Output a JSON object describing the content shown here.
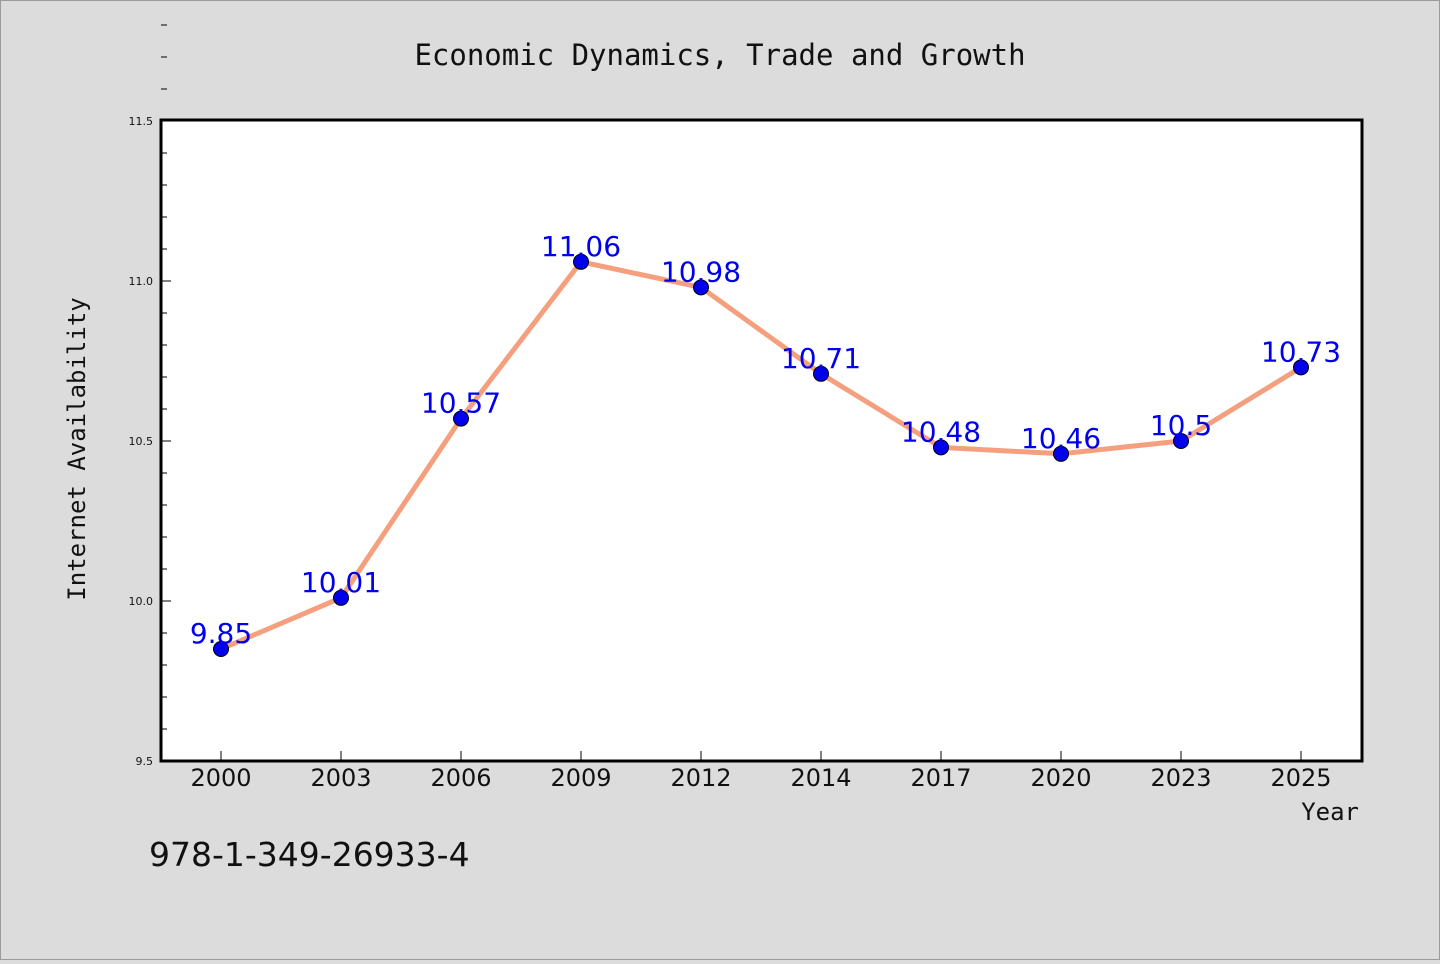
{
  "chart_data": {
    "type": "line",
    "title": "Economic Dynamics, Trade and Growth",
    "xlabel": "Year",
    "ylabel": "Internet Availability",
    "categories": [
      "2000",
      "2003",
      "2006",
      "2009",
      "2012",
      "2014",
      "2017",
      "2020",
      "2023",
      "2025"
    ],
    "series": [
      {
        "values": [
          9.85,
          10.01,
          10.57,
          11.06,
          10.98,
          10.71,
          10.48,
          10.46,
          10.5,
          10.73
        ],
        "labels": [
          "9.85",
          "10.01",
          "10.57",
          "11.06",
          "10.98",
          "10.71",
          "10.48",
          "10.46",
          "10.5",
          "10.73"
        ]
      }
    ],
    "ylim": [
      9.5,
      11.5
    ],
    "yticks": [
      "9.5",
      "10.0",
      "10.5",
      "11.0",
      "11.5"
    ],
    "grid": false,
    "line_color": "#f4a07e",
    "marker_color": "#0000ee",
    "label_color": "#0000ee",
    "plot_background": "#ffffff",
    "page_background": "#dcdcdc"
  },
  "isbn": "978-1-349-26933-4"
}
